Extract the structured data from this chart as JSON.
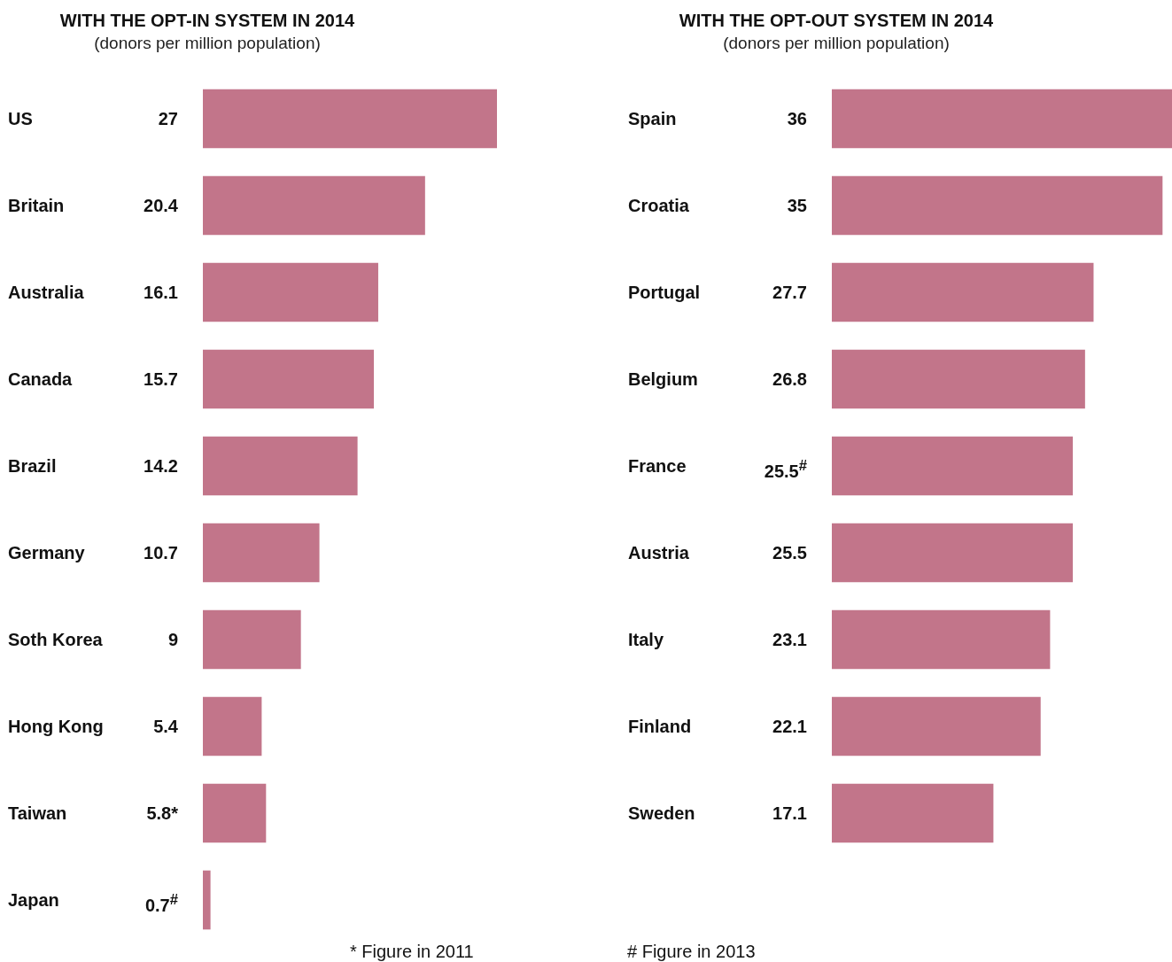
{
  "chart_data": [
    {
      "type": "bar",
      "orientation": "horizontal",
      "title": "WITH THE OPT-IN SYSTEM IN 2014",
      "subtitle": "(donors per million population)",
      "categories": [
        "US",
        "Britain",
        "Australia",
        "Canada",
        "Brazil",
        "Germany",
        "Soth Korea",
        "Hong Kong",
        "Taiwan",
        "Japan"
      ],
      "values": [
        27,
        20.4,
        16.1,
        15.7,
        14.2,
        10.7,
        9,
        5.4,
        5.8,
        0.7
      ],
      "value_labels": [
        "27",
        "20.4",
        "16.1",
        "15.7",
        "14.2",
        "10.7",
        "9",
        "5.4",
        "5.8*",
        "0.7$^{#}$"
      ],
      "color": "#c2758a",
      "annotations": [
        "* Figure in 2011"
      ]
    },
    {
      "type": "bar",
      "orientation": "horizontal",
      "title": "WITH THE OPT-OUT SYSTEM IN 2014",
      "subtitle": "(donors per million population)",
      "categories": [
        "Spain",
        "Croatia",
        "Portugal",
        "Belgium",
        "France",
        "Austria",
        "Italy",
        "Finland",
        "Sweden"
      ],
      "values": [
        36,
        35,
        27.7,
        26.8,
        25.5,
        25.5,
        23.1,
        22.1,
        17.1
      ],
      "value_labels": [
        "36",
        "35",
        "27.7",
        "26.8",
        "25.5$^{#}$",
        "25.5",
        "23.1",
        "22.1",
        "17.1"
      ],
      "color": "#c2758a",
      "annotations": [
        "# Figure in 2013"
      ]
    }
  ]
}
